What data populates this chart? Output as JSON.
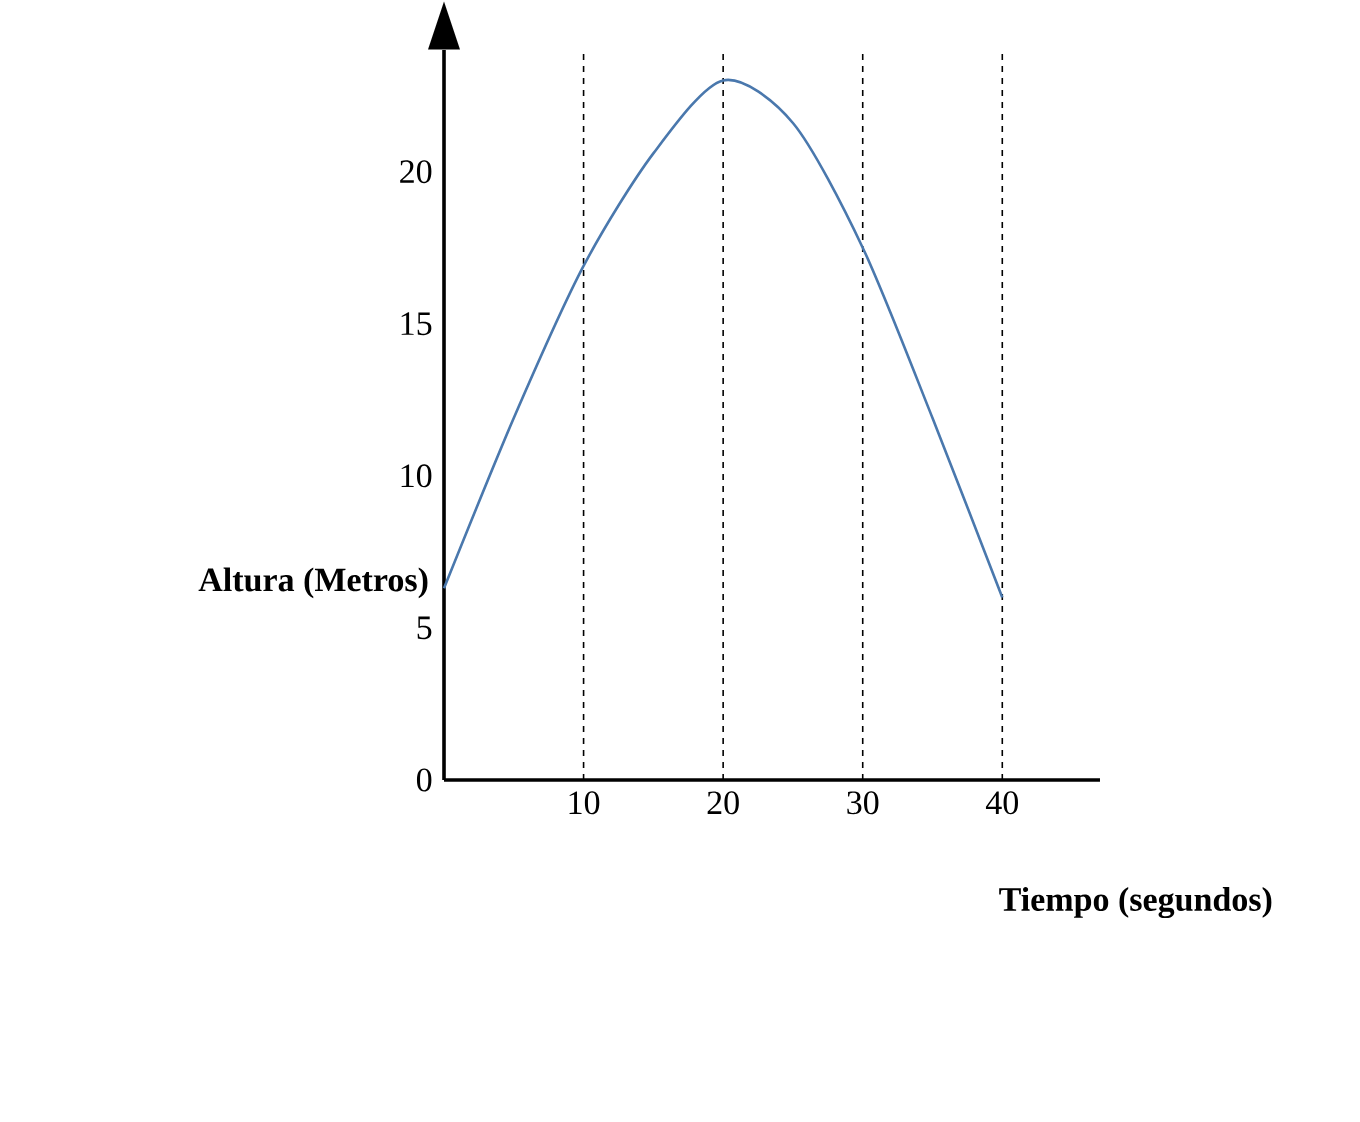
{
  "chart_data": {
    "type": "line",
    "xlabel": "Tiempo (segundos)",
    "ylabel": "Altura (Metros)",
    "x": [
      0,
      5,
      10,
      15,
      20,
      25,
      30,
      35,
      40
    ],
    "series": [
      {
        "color": "#4a78ad",
        "values": [
          6.3,
          11.9,
          16.9,
          20.6,
          23,
          21.6,
          17.5,
          11.9,
          6.0
        ]
      }
    ],
    "xlim": [
      0,
      47
    ],
    "ylim": [
      0,
      24
    ],
    "xticks": [
      10,
      20,
      30,
      40
    ],
    "yticks": [
      0,
      5,
      10,
      15,
      20
    ],
    "grid": "x",
    "marker": "none",
    "line_style": "solid"
  }
}
